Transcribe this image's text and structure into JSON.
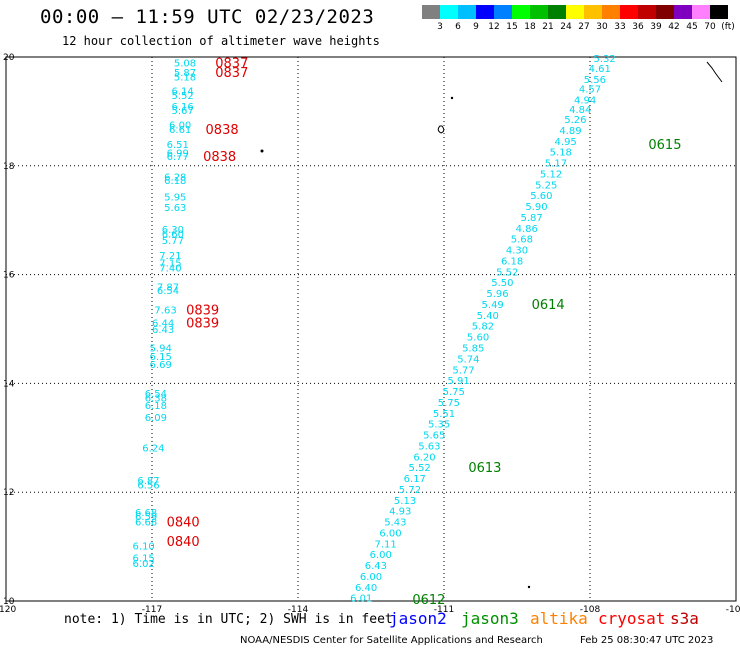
{
  "header": {
    "title": "00:00 – 11:59 UTC 02/23/2023",
    "subtitle": "12 hour collection of altimeter wave heights"
  },
  "colorbar": {
    "colors": [
      "#808080",
      "#00ffff",
      "#00bfff",
      "#0000ff",
      "#0080ff",
      "#00ff00",
      "#00c000",
      "#008000",
      "#ffff00",
      "#ffc000",
      "#ff8000",
      "#ff0000",
      "#c00000",
      "#800000",
      "#8000c0",
      "#ff80ff",
      "#000000"
    ],
    "labels": [
      "3",
      "6",
      "9",
      "12",
      "15",
      "18",
      "21",
      "24",
      "27",
      "30",
      "33",
      "36",
      "39",
      "42",
      "45",
      "70",
      "(ft)"
    ]
  },
  "chart_data": {
    "type": "scatter",
    "xlim": [
      -120,
      -105
    ],
    "ylim": [
      10,
      20
    ],
    "x_ticks": [
      "-120",
      "-117",
      "-114",
      "-111",
      "-108",
      "-105"
    ],
    "y_ticks": [
      "20",
      "18",
      "16",
      "14",
      "12",
      "10"
    ],
    "grid": "dotted",
    "pass_west": [
      {
        "lon": -116.55,
        "lat": 19.9,
        "v": "5.08"
      },
      {
        "lon": -116.55,
        "lat": 19.72,
        "v": "5.87"
      },
      {
        "lon": -116.55,
        "lat": 19.64,
        "v": "5.18"
      },
      {
        "lon": -116.6,
        "lat": 19.38,
        "v": "6.14"
      },
      {
        "lon": -116.6,
        "lat": 19.3,
        "v": "5.52"
      },
      {
        "lon": -116.6,
        "lat": 19.1,
        "v": "6.16"
      },
      {
        "lon": -116.6,
        "lat": 19.03,
        "v": "5.67"
      },
      {
        "lon": -116.65,
        "lat": 18.76,
        "v": "6.00"
      },
      {
        "lon": -116.65,
        "lat": 18.68,
        "v": "6.61"
      },
      {
        "lon": -116.7,
        "lat": 18.4,
        "v": "6.51"
      },
      {
        "lon": -116.7,
        "lat": 18.24,
        "v": "6.99"
      },
      {
        "lon": -116.7,
        "lat": 18.18,
        "v": "6.77"
      },
      {
        "lon": -116.75,
        "lat": 17.8,
        "v": "6.28"
      },
      {
        "lon": -116.75,
        "lat": 17.74,
        "v": "6.18"
      },
      {
        "lon": -116.75,
        "lat": 17.44,
        "v": "5.95"
      },
      {
        "lon": -116.75,
        "lat": 17.24,
        "v": "5.63"
      },
      {
        "lon": -116.8,
        "lat": 16.84,
        "v": "6.30"
      },
      {
        "lon": -116.8,
        "lat": 16.76,
        "v": "6.60"
      },
      {
        "lon": -116.8,
        "lat": 16.64,
        "v": "5.77"
      },
      {
        "lon": -116.85,
        "lat": 16.36,
        "v": "7.21"
      },
      {
        "lon": -116.85,
        "lat": 16.22,
        "v": "7.15"
      },
      {
        "lon": -116.85,
        "lat": 16.13,
        "v": "7.40"
      },
      {
        "lon": -116.9,
        "lat": 15.78,
        "v": "7.87"
      },
      {
        "lon": -116.9,
        "lat": 15.72,
        "v": "6.54"
      },
      {
        "lon": -116.95,
        "lat": 15.36,
        "v": "7.63"
      },
      {
        "lon": -117.0,
        "lat": 15.12,
        "v": "6.44"
      },
      {
        "lon": -117.0,
        "lat": 15.0,
        "v": "6.43"
      },
      {
        "lon": -117.05,
        "lat": 14.66,
        "v": "5.94"
      },
      {
        "lon": -117.05,
        "lat": 14.5,
        "v": "6.15"
      },
      {
        "lon": -117.05,
        "lat": 14.36,
        "v": "6.69"
      },
      {
        "lon": -117.15,
        "lat": 13.82,
        "v": "6.54"
      },
      {
        "lon": -117.15,
        "lat": 13.74,
        "v": "6.38"
      },
      {
        "lon": -117.15,
        "lat": 13.6,
        "v": "6.18"
      },
      {
        "lon": -117.15,
        "lat": 13.38,
        "v": "6.09"
      },
      {
        "lon": -117.2,
        "lat": 12.82,
        "v": "6.24"
      },
      {
        "lon": -117.3,
        "lat": 12.22,
        "v": "6.87"
      },
      {
        "lon": -117.3,
        "lat": 12.14,
        "v": "6.56"
      },
      {
        "lon": -117.35,
        "lat": 11.64,
        "v": "6.68"
      },
      {
        "lon": -117.35,
        "lat": 11.56,
        "v": "6.59"
      },
      {
        "lon": -117.35,
        "lat": 11.46,
        "v": "6.68"
      },
      {
        "lon": -117.4,
        "lat": 11.02,
        "v": "6.10"
      },
      {
        "lon": -117.4,
        "lat": 10.8,
        "v": "6.15"
      },
      {
        "lon": -117.4,
        "lat": 10.7,
        "v": "6.02"
      }
    ],
    "pass_west_times": [
      {
        "lon": -115.7,
        "lat": 19.9,
        "t": "0837"
      },
      {
        "lon": -115.7,
        "lat": 19.72,
        "t": "0837"
      },
      {
        "lon": -115.9,
        "lat": 18.68,
        "t": "0838"
      },
      {
        "lon": -115.95,
        "lat": 18.18,
        "t": "0838"
      },
      {
        "lon": -116.3,
        "lat": 15.36,
        "t": "0839"
      },
      {
        "lon": -116.3,
        "lat": 15.12,
        "t": "0839"
      },
      {
        "lon": -116.7,
        "lat": 11.46,
        "t": "0840"
      },
      {
        "lon": -116.7,
        "lat": 11.1,
        "t": "0840"
      }
    ],
    "pass_east": [
      {
        "lon": -107.7,
        "lat": 19.98,
        "v": "5.32"
      },
      {
        "lon": -107.8,
        "lat": 19.8,
        "v": "4.61"
      },
      {
        "lon": -107.9,
        "lat": 19.6,
        "v": "5.56"
      },
      {
        "lon": -108.0,
        "lat": 19.42,
        "v": "4.57"
      },
      {
        "lon": -108.1,
        "lat": 19.22,
        "v": "4.94"
      },
      {
        "lon": -108.2,
        "lat": 19.04,
        "v": "4.84"
      },
      {
        "lon": -108.3,
        "lat": 18.86,
        "v": "5.26"
      },
      {
        "lon": -108.4,
        "lat": 18.66,
        "v": "4.89"
      },
      {
        "lon": -108.5,
        "lat": 18.46,
        "v": "4.95"
      },
      {
        "lon": -108.6,
        "lat": 18.26,
        "v": "5.18"
      },
      {
        "lon": -108.7,
        "lat": 18.06,
        "v": "5.17"
      },
      {
        "lon": -108.8,
        "lat": 17.86,
        "v": "5.12"
      },
      {
        "lon": -108.9,
        "lat": 17.66,
        "v": "5.25"
      },
      {
        "lon": -109.0,
        "lat": 17.46,
        "v": "5.60"
      },
      {
        "lon": -109.1,
        "lat": 17.26,
        "v": "5.90"
      },
      {
        "lon": -109.2,
        "lat": 17.06,
        "v": "5.87"
      },
      {
        "lon": -109.3,
        "lat": 16.86,
        "v": "4.86"
      },
      {
        "lon": -109.4,
        "lat": 16.66,
        "v": "5.68"
      },
      {
        "lon": -109.5,
        "lat": 16.46,
        "v": "4.30"
      },
      {
        "lon": -109.6,
        "lat": 16.26,
        "v": "6.18"
      },
      {
        "lon": -109.7,
        "lat": 16.06,
        "v": "5.52"
      },
      {
        "lon": -109.8,
        "lat": 15.86,
        "v": "5.50"
      },
      {
        "lon": -109.9,
        "lat": 15.66,
        "v": "5.96"
      },
      {
        "lon": -110.0,
        "lat": 15.46,
        "v": "5.49"
      },
      {
        "lon": -110.1,
        "lat": 15.26,
        "v": "5.40"
      },
      {
        "lon": -110.2,
        "lat": 15.06,
        "v": "5.82"
      },
      {
        "lon": -110.3,
        "lat": 14.86,
        "v": "5.60"
      },
      {
        "lon": -110.4,
        "lat": 14.66,
        "v": "5.85"
      },
      {
        "lon": -110.5,
        "lat": 14.46,
        "v": "5.74"
      },
      {
        "lon": -110.6,
        "lat": 14.26,
        "v": "5.77"
      },
      {
        "lon": -110.7,
        "lat": 14.06,
        "v": "5.91"
      },
      {
        "lon": -110.8,
        "lat": 13.86,
        "v": "5.75"
      },
      {
        "lon": -110.9,
        "lat": 13.66,
        "v": "5.75"
      },
      {
        "lon": -111.0,
        "lat": 13.46,
        "v": "5.51"
      },
      {
        "lon": -111.1,
        "lat": 13.26,
        "v": "5.35"
      },
      {
        "lon": -111.2,
        "lat": 13.06,
        "v": "5.65"
      },
      {
        "lon": -111.3,
        "lat": 12.86,
        "v": "5.63"
      },
      {
        "lon": -111.4,
        "lat": 12.66,
        "v": "6.20"
      },
      {
        "lon": -111.5,
        "lat": 12.46,
        "v": "5.52"
      },
      {
        "lon": -111.6,
        "lat": 12.26,
        "v": "6.17"
      },
      {
        "lon": -111.7,
        "lat": 12.06,
        "v": "5.72"
      },
      {
        "lon": -111.8,
        "lat": 11.86,
        "v": "5.13"
      },
      {
        "lon": -111.9,
        "lat": 11.66,
        "v": "4.93"
      },
      {
        "lon": -112.0,
        "lat": 11.46,
        "v": "5.43"
      },
      {
        "lon": -112.1,
        "lat": 11.26,
        "v": "6.00"
      },
      {
        "lon": -112.2,
        "lat": 11.06,
        "v": "7.11"
      },
      {
        "lon": -112.3,
        "lat": 10.86,
        "v": "6.00"
      },
      {
        "lon": -112.4,
        "lat": 10.66,
        "v": "6.43"
      },
      {
        "lon": -112.5,
        "lat": 10.46,
        "v": "6.00"
      },
      {
        "lon": -112.6,
        "lat": 10.26,
        "v": "6.40"
      },
      {
        "lon": -112.7,
        "lat": 10.06,
        "v": "6.01"
      }
    ],
    "pass_east_times": [
      {
        "lon": -106.8,
        "lat": 18.4,
        "t": "0615"
      },
      {
        "lon": -109.2,
        "lat": 15.46,
        "t": "0614"
      },
      {
        "lon": -110.5,
        "lat": 12.46,
        "t": "0613"
      },
      {
        "lon": -111.65,
        "lat": 10.04,
        "t": "0612"
      }
    ],
    "value_color": "#00d8f0",
    "time_color_west": "#e00000",
    "time_color_east": "#008000"
  },
  "footer": {
    "note": "note: 1) Time is in UTC; 2) SWH is in feet",
    "satellites": [
      {
        "name": "jason2",
        "color": "#0000ff"
      },
      {
        "name": "jason3",
        "color": "#009000"
      },
      {
        "name": "altika",
        "color": "#ff8000"
      },
      {
        "name": "cryosat",
        "color": "#ff0000"
      },
      {
        "name": "s3a",
        "color": "#c00000"
      }
    ],
    "credit": "NOAA/NESDIS Center for Satellite Applications and Research",
    "timestamp": "Feb 25 08:30:47 UTC 2023"
  }
}
